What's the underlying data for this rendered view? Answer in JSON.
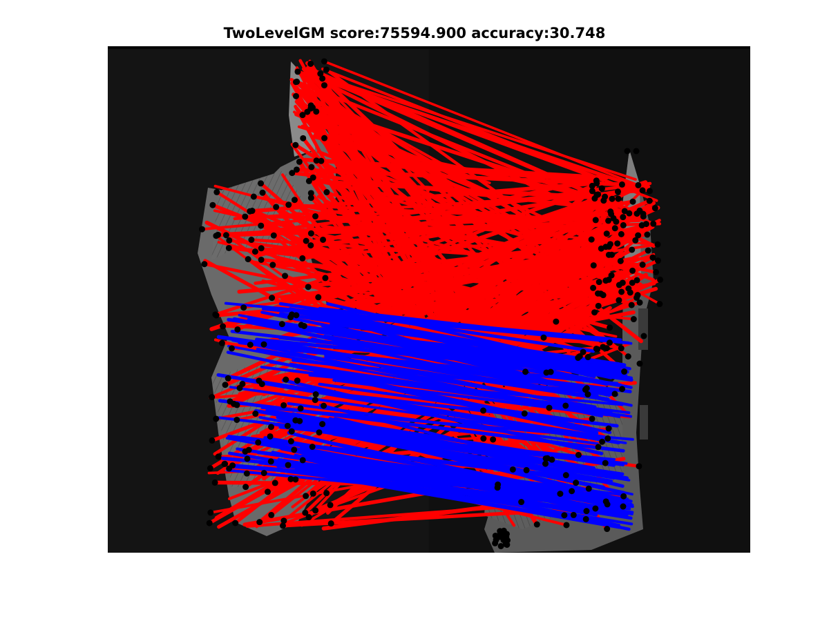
{
  "figure": {
    "title": "TwoLevelGM score:75594.900 accuracy:30.748",
    "background": "#ffffff",
    "image_background": "#111111",
    "match_colors": {
      "incorrect": "#ff0000",
      "correct": "#0000ff",
      "keypoint": "#000000"
    }
  }
}
